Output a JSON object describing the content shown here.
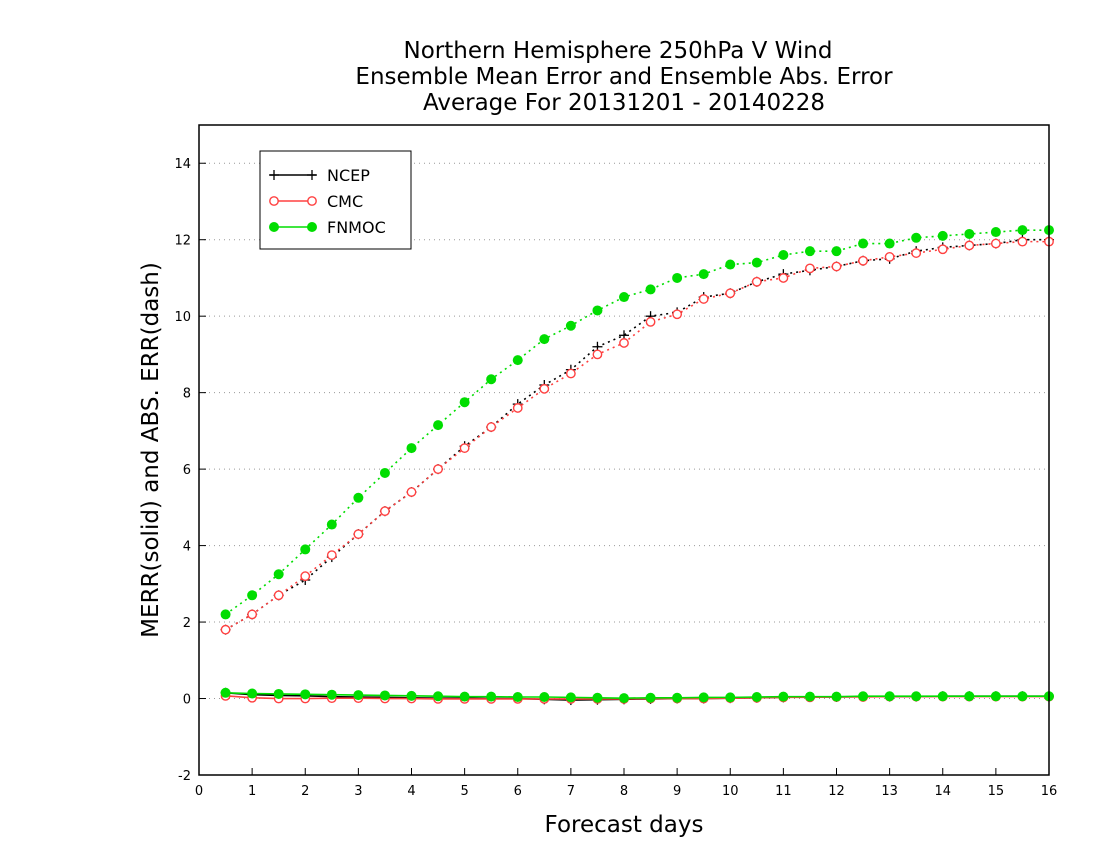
{
  "chart_data": {
    "type": "line",
    "title_lines": [
      "Northern Hemisphere 250hPa V Wind",
      "Ensemble Mean Error and Ensemble Abs. Error",
      "Average For 20131201 - 20140228"
    ],
    "xlabel": "Forecast days",
    "ylabel": "MERR(solid) and ABS. ERR(dash)",
    "xlim": [
      0,
      16
    ],
    "ylim": [
      -2,
      15
    ],
    "x_ticks": [
      "0",
      "1",
      "2",
      "3",
      "4",
      "5",
      "6",
      "7",
      "8",
      "9",
      "10",
      "11",
      "12",
      "13",
      "14",
      "15",
      "16"
    ],
    "y_ticks": [
      "-2",
      "0",
      "2",
      "4",
      "6",
      "8",
      "10",
      "12",
      "14"
    ],
    "grid": "horizontal dotted",
    "legend_position": "top-left",
    "x": [
      0.5,
      1,
      1.5,
      2,
      2.5,
      3,
      3.5,
      4,
      4.5,
      5,
      5.5,
      6,
      6.5,
      7,
      7.5,
      8,
      8.5,
      9,
      9.5,
      10,
      10.5,
      11,
      11.5,
      12,
      12.5,
      13,
      13.5,
      14,
      14.5,
      15,
      15.5,
      16
    ],
    "series": [
      {
        "name": "NCEP",
        "color": "#000000",
        "marker": "plus",
        "abs_error": [
          1.8,
          2.2,
          2.7,
          3.1,
          3.7,
          4.3,
          4.9,
          5.4,
          6.0,
          6.6,
          7.1,
          7.7,
          8.2,
          8.6,
          9.2,
          9.5,
          10.0,
          10.1,
          10.5,
          10.6,
          10.9,
          11.1,
          11.2,
          11.3,
          11.45,
          11.5,
          11.7,
          11.8,
          11.85,
          11.9,
          12.0,
          12.0
        ],
        "mean_error": [
          0.15,
          0.1,
          0.08,
          0.07,
          0.05,
          0.04,
          0.03,
          0.02,
          0.01,
          0.01,
          0.0,
          0.0,
          -0.02,
          -0.04,
          -0.03,
          -0.02,
          -0.01,
          0.0,
          0.0,
          0.01,
          0.02,
          0.03,
          0.04,
          0.04,
          0.05,
          0.05,
          0.05,
          0.06,
          0.06,
          0.06,
          0.06,
          0.06
        ]
      },
      {
        "name": "CMC",
        "color": "#ff4040",
        "marker": "open-circle",
        "abs_error": [
          1.8,
          2.2,
          2.7,
          3.2,
          3.75,
          4.3,
          4.9,
          5.4,
          6.0,
          6.55,
          7.1,
          7.6,
          8.1,
          8.5,
          9.0,
          9.3,
          9.85,
          10.05,
          10.45,
          10.6,
          10.9,
          11.0,
          11.25,
          11.3,
          11.45,
          11.55,
          11.65,
          11.75,
          11.85,
          11.9,
          11.95,
          11.95
        ],
        "mean_error": [
          0.07,
          0.02,
          0.0,
          0.0,
          0.01,
          0.01,
          0.0,
          0.0,
          -0.01,
          -0.01,
          -0.01,
          -0.01,
          -0.01,
          -0.01,
          -0.01,
          -0.01,
          0.0,
          0.0,
          0.0,
          0.01,
          0.02,
          0.03,
          0.03,
          0.04,
          0.04,
          0.05,
          0.05,
          0.05,
          0.05,
          0.05,
          0.05,
          0.05
        ]
      },
      {
        "name": "FNMOC",
        "color": "#00dd00",
        "marker": "filled-circle",
        "abs_error": [
          2.2,
          2.7,
          3.25,
          3.9,
          4.55,
          5.25,
          5.9,
          6.55,
          7.15,
          7.75,
          8.35,
          8.85,
          9.4,
          9.75,
          10.15,
          10.5,
          10.7,
          11.0,
          11.1,
          11.35,
          11.4,
          11.6,
          11.7,
          11.7,
          11.9,
          11.9,
          12.05,
          12.1,
          12.15,
          12.2,
          12.25,
          12.25
        ],
        "mean_error": [
          0.15,
          0.13,
          0.12,
          0.11,
          0.1,
          0.09,
          0.08,
          0.07,
          0.06,
          0.05,
          0.05,
          0.04,
          0.04,
          0.03,
          0.02,
          0.01,
          0.02,
          0.02,
          0.03,
          0.03,
          0.04,
          0.05,
          0.05,
          0.05,
          0.06,
          0.06,
          0.06,
          0.06,
          0.06,
          0.06,
          0.06,
          0.06
        ]
      }
    ]
  }
}
